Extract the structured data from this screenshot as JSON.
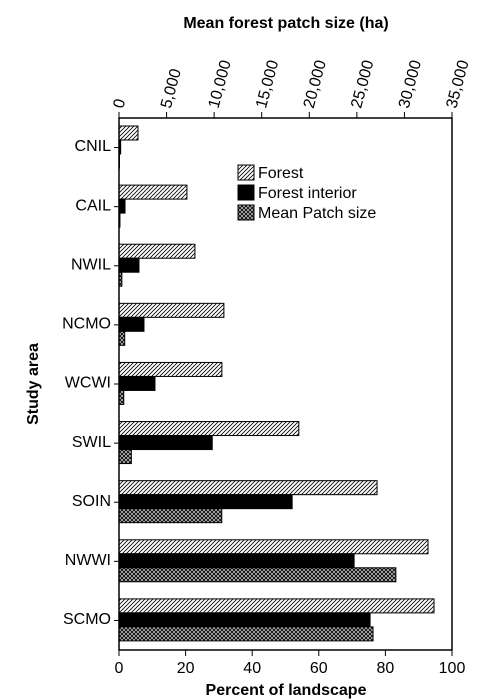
{
  "chart_data": {
    "type": "hbar",
    "xlabel": "Percent of landscape",
    "x2label": "Mean forest patch size (ha)",
    "ylabel": "Study area",
    "categories": [
      "CNIL",
      "CAIL",
      "NWIL",
      "NCMO",
      "WCWI",
      "SWIL",
      "SOIN",
      "NWWI",
      "SCMO"
    ],
    "series": [
      {
        "name": "Forest",
        "color": "#ffffff",
        "pattern": "diagonal",
        "values": [
          5.7,
          20.4,
          22.8,
          31.5,
          30.9,
          54,
          77.5,
          92.8,
          94.6
        ]
      },
      {
        "name": "Forest interior",
        "color": "#000000",
        "pattern": "solid",
        "values": [
          0.5,
          1.8,
          6,
          7.5,
          10.8,
          28,
          52,
          70.6,
          75.4
        ]
      },
      {
        "name": "Mean Patch size",
        "color": "#bbbbbb",
        "pattern": "crosshatch",
        "axis": "x2",
        "values": [
          50,
          100,
          300,
          600,
          500,
          1300,
          10800,
          29100,
          26700
        ]
      }
    ],
    "xlim": [
      0,
      100
    ],
    "xticks": [
      0,
      20,
      40,
      60,
      80,
      100
    ],
    "x2lim": [
      0,
      35000
    ],
    "x2ticks": [
      0,
      {
        "value": 5000,
        "label": "5,000"
      },
      {
        "value": 10000,
        "label": "10,000"
      },
      {
        "value": 15000,
        "label": "15,000"
      },
      {
        "value": 20000,
        "label": "20,000"
      },
      {
        "value": 25000,
        "label": "25,000"
      },
      {
        "value": 30000,
        "label": "30,000"
      },
      {
        "value": 35000,
        "label": "35,000"
      }
    ],
    "legend": "upper-center"
  }
}
